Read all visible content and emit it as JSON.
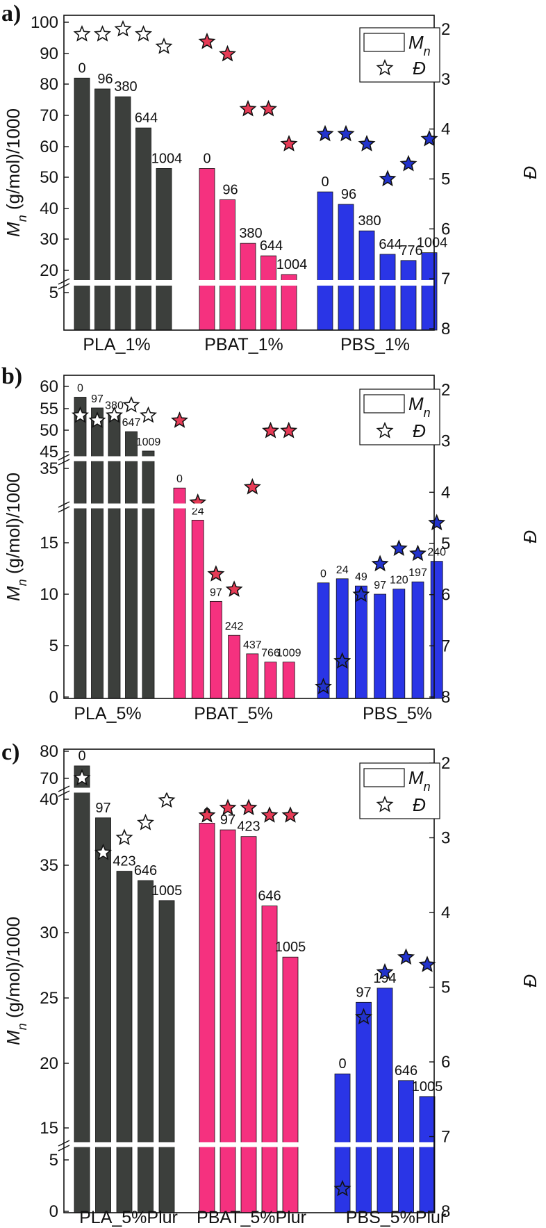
{
  "figure": {
    "description_labels": [
      "a)",
      "b)",
      "c)"
    ]
  },
  "colors": {
    "PLA": "#3c3f3c",
    "PBAT": "#f5317f",
    "PBS": "#2a35e6",
    "PBAT_star": "#e63b56",
    "PBS_star": "#2233cc",
    "PLA_star": "#ffffff"
  },
  "chart_data": [
    {
      "panel": "a)",
      "type": "bar",
      "title": "",
      "ylabel_left": "M_n (g/mol)/1000",
      "ylabel_right": "Đ",
      "left_ticks_upper": [
        "20",
        "30",
        "40",
        "50",
        "60",
        "70",
        "80",
        "90",
        "100"
      ],
      "left_ticks_lower": [
        "5"
      ],
      "right_ticks": [
        "2",
        "3",
        "4",
        "5",
        "6",
        "7",
        "8"
      ],
      "ylim_upper": [
        16,
        100
      ],
      "ylim_right": [
        2,
        8
      ],
      "legend": {
        "bar": "M",
        "bar_sub": "n",
        "star": "Đ"
      },
      "groups": [
        {
          "name": "PLA_1%",
          "color_key": "PLA",
          "star_key": "PLA_star",
          "labels": [
            "0",
            "96",
            "380",
            "644",
            "1004"
          ],
          "values": [
            81,
            77.5,
            75,
            65,
            52
          ],
          "dispersity": [
            2.1,
            2.1,
            2.0,
            2.1,
            2.35
          ]
        },
        {
          "name": "PBAT_1%",
          "color_key": "PBAT",
          "star_key": "PBAT_star",
          "labels": [
            "0",
            "96",
            "380",
            "644",
            "1004"
          ],
          "values": [
            52,
            42,
            28,
            24,
            18
          ],
          "dispersity": [
            2.25,
            2.5,
            3.6,
            3.6,
            4.3
          ]
        },
        {
          "name": "PBS_1%",
          "color_key": "PBS",
          "star_key": "PBS_star",
          "labels": [
            "0",
            "96",
            "380",
            "644",
            "776",
            "1004"
          ],
          "values": [
            44.5,
            40.5,
            32,
            24.5,
            22.5,
            25
          ],
          "dispersity": [
            4.1,
            4.1,
            4.3,
            5.0,
            4.7,
            4.2
          ]
        }
      ]
    },
    {
      "panel": "b)",
      "type": "bar",
      "title": "",
      "ylabel_left": "M_n (g/mol)/1000",
      "ylabel_right": "Đ",
      "left_ticks_top": [
        "45",
        "50",
        "55",
        "60"
      ],
      "left_ticks_mid": [
        "35"
      ],
      "left_ticks_bottom": [
        "0",
        "5",
        "10",
        "15"
      ],
      "right_ticks": [
        "2",
        "3",
        "4",
        "5",
        "6",
        "7",
        "8"
      ],
      "ylim_right": [
        2,
        8
      ],
      "legend": {
        "bar": "M",
        "bar_sub": "n",
        "star": "Đ"
      },
      "groups": [
        {
          "name": "PLA_5%",
          "color_key": "PLA",
          "star_key": "PLA_star",
          "labels": [
            "0",
            "97",
            "380",
            "647",
            "1009"
          ],
          "values": [
            57.5,
            55,
            53.5,
            49.5,
            45
          ],
          "dispersity": [
            2.5,
            2.6,
            2.5,
            2.3,
            2.5
          ]
        },
        {
          "name": "PBAT_5%",
          "color_key": "PBAT",
          "star_key": "PBAT_star",
          "labels": [
            "0",
            "24",
            "97",
            "242",
            "437",
            "766",
            "1009"
          ],
          "values": [
            32,
            17.2,
            9.3,
            6.0,
            4.2,
            3.4,
            3.4
          ],
          "dispersity": [
            2.6,
            4.2,
            5.6,
            5.9,
            3.9,
            2.8,
            2.8
          ]
        },
        {
          "name": "PBS_5%",
          "color_key": "PBS",
          "star_key": "PBS_star",
          "labels": [
            "0",
            "24",
            "49",
            "97",
            "120",
            "197",
            "240"
          ],
          "values": [
            11.1,
            11.5,
            10.8,
            10.0,
            10.5,
            11.2,
            13.2
          ],
          "dispersity": [
            7.8,
            7.3,
            6.0,
            5.4,
            5.1,
            5.2,
            4.6
          ]
        }
      ]
    },
    {
      "panel": "c)",
      "type": "bar",
      "title": "",
      "ylabel_left": "M_n (g/mol)/1000",
      "ylabel_right": "Đ",
      "left_ticks_top": [
        "70",
        "80"
      ],
      "left_ticks_mid": [
        "15",
        "20",
        "25",
        "30",
        "35",
        "40"
      ],
      "left_ticks_bottom": [
        "0",
        "5"
      ],
      "right_ticks": [
        "2",
        "3",
        "4",
        "5",
        "6",
        "7",
        "8"
      ],
      "ylim_right": [
        2,
        8
      ],
      "legend": {
        "bar": "M",
        "bar_sub": "n",
        "star": "Đ"
      },
      "groups": [
        {
          "name": "PLA_5%Plur",
          "color_key": "PLA",
          "star_key": "PLA_star",
          "labels": [
            "0",
            "97",
            "423",
            "646",
            "1005"
          ],
          "values": [
            74,
            38.5,
            34.5,
            33.8,
            32.3
          ],
          "dispersity": [
            2.2,
            3.2,
            3.0,
            2.8,
            2.5
          ]
        },
        {
          "name": "PBAT_5%Plur",
          "color_key": "PBAT",
          "star_key": "PBAT_star",
          "labels": [
            "0",
            "97",
            "423",
            "646",
            "1005"
          ],
          "values": [
            38.1,
            37.6,
            37.1,
            31.9,
            28.0
          ],
          "dispersity": [
            2.7,
            2.6,
            2.6,
            2.7,
            2.7
          ]
        },
        {
          "name": "PBS_5%Plur",
          "color_key": "PBS",
          "star_key": "PBS_star",
          "labels": [
            "0",
            "97",
            "194",
            "646",
            "1005"
          ],
          "values": [
            19.0,
            24.5,
            25.6,
            18.5,
            17.3
          ],
          "dispersity": [
            7.7,
            5.4,
            4.8,
            4.6,
            4.7
          ]
        }
      ]
    }
  ]
}
